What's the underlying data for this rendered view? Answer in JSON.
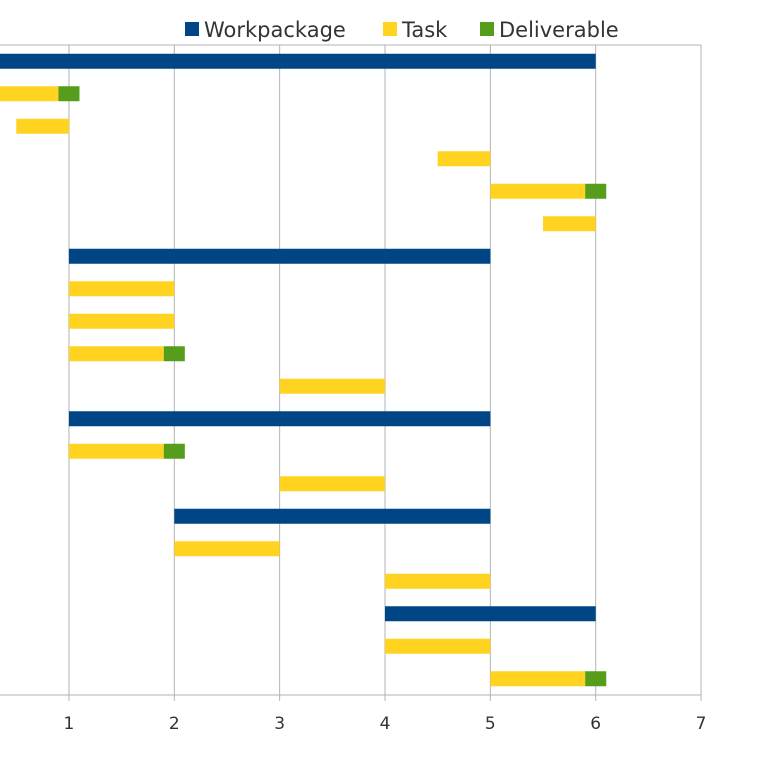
{
  "chart_data": {
    "type": "bar",
    "orientation": "horizontal",
    "stacked": true,
    "xlim": [
      0,
      7
    ],
    "xticks": [
      "1",
      "2",
      "3",
      "4",
      "5",
      "6",
      "7"
    ],
    "grid": true,
    "legend_position": "top-right",
    "legend": [
      {
        "name": "Workpackage",
        "color": "#004586"
      },
      {
        "name": "Task",
        "color": "#ffd320"
      },
      {
        "name": "Deliverable",
        "color": "#579d1c"
      }
    ],
    "rows": [
      {
        "kind": "Workpackage",
        "start": 0,
        "end": 6
      },
      {
        "kind": "Task",
        "start": 0,
        "end": 0.9,
        "deliverable": [
          0.9,
          1.1
        ]
      },
      {
        "kind": "Task",
        "start": 0.5,
        "end": 1
      },
      {
        "kind": "Task",
        "start": 4.5,
        "end": 5
      },
      {
        "kind": "Task",
        "start": 5,
        "end": 5.9,
        "deliverable": [
          5.9,
          6.1
        ]
      },
      {
        "kind": "Task",
        "start": 5.5,
        "end": 6
      },
      {
        "kind": "Workpackage",
        "start": 1,
        "end": 5
      },
      {
        "kind": "Task",
        "start": 1,
        "end": 2
      },
      {
        "kind": "Task",
        "start": 1,
        "end": 2
      },
      {
        "kind": "Task",
        "start": 1,
        "end": 1.9,
        "deliverable": [
          1.9,
          2.1
        ]
      },
      {
        "kind": "Task",
        "start": 3,
        "end": 4
      },
      {
        "kind": "Workpackage",
        "start": 1,
        "end": 5
      },
      {
        "kind": "Task",
        "start": 1,
        "end": 1.9,
        "deliverable": [
          1.9,
          2.1
        ]
      },
      {
        "kind": "Task",
        "start": 3,
        "end": 4
      },
      {
        "kind": "Workpackage",
        "start": 2,
        "end": 5
      },
      {
        "kind": "Task",
        "start": 2,
        "end": 3
      },
      {
        "kind": "Task",
        "start": 4,
        "end": 5
      },
      {
        "kind": "Workpackage",
        "start": 4,
        "end": 6
      },
      {
        "kind": "Task",
        "start": 4,
        "end": 5
      },
      {
        "kind": "Task",
        "start": 5,
        "end": 5.9,
        "deliverable": [
          5.9,
          6.1
        ]
      }
    ]
  }
}
